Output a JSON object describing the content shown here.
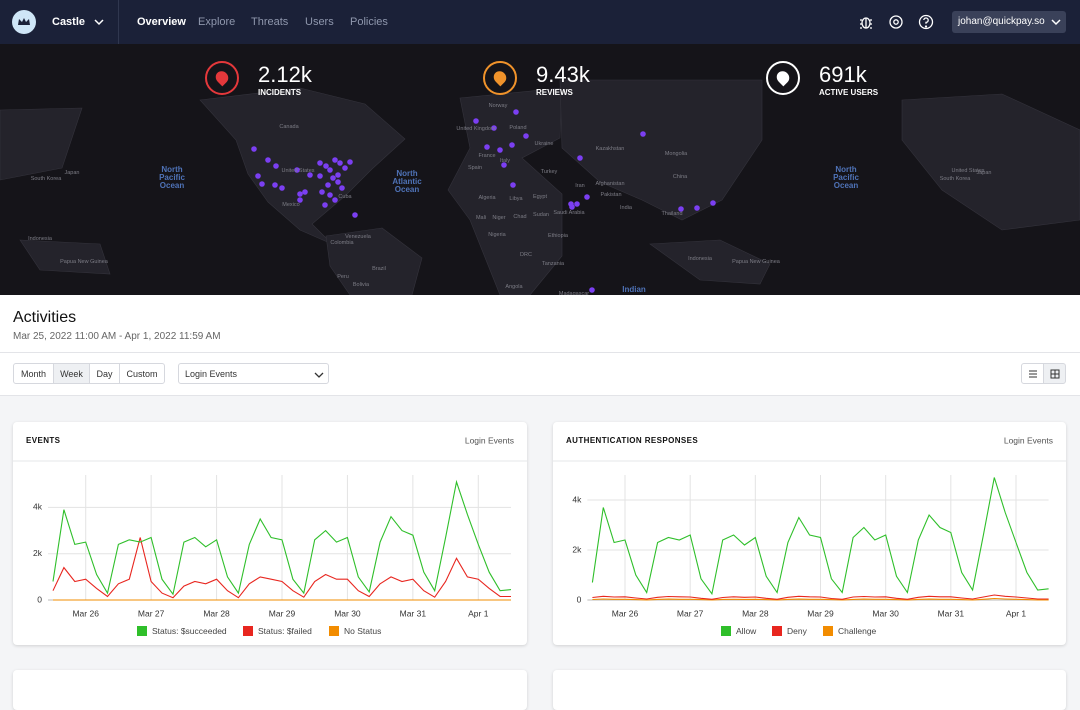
{
  "nav": {
    "brand": "Castle",
    "links": [
      "Overview",
      "Explore",
      "Threats",
      "Users",
      "Policies"
    ],
    "active": "Overview",
    "user": "johan@quickpay.so"
  },
  "stats": [
    {
      "value": "2.12k",
      "label": "INCIDENTS",
      "color": "#e5383b"
    },
    {
      "value": "9.43k",
      "label": "REVIEWS",
      "color": "#f0932b"
    },
    {
      "value": "691k",
      "label": "ACTIVE USERS",
      "color": "#ffffff"
    }
  ],
  "map_labels": [
    "North Pacific Ocean",
    "North Atlantic Ocean",
    "North Pacific Ocean",
    "Indian",
    "Canada",
    "United States",
    "Mexico",
    "Cuba",
    "Venezuela",
    "Colombia",
    "Peru",
    "Brazil",
    "Bolivia",
    "Algeria",
    "Libya",
    "Egypt",
    "Mali",
    "Niger",
    "Chad",
    "Sudan",
    "Nigeria",
    "Ethiopia",
    "DRC",
    "Tanzania",
    "Angola",
    "Kazakhstan",
    "Mongolia",
    "China",
    "Iran",
    "Turkey",
    "Ukraine",
    "Poland",
    "India",
    "Pakistan",
    "Afghanistan",
    "Thailand",
    "Japan",
    "South Korea",
    "Japan",
    "South Korea",
    "United States",
    "Papua New Guinea",
    "Papua New Guinea",
    "Indonesia",
    "Indonesia",
    "Saudi Arabia",
    "Norway",
    "United Kingdom",
    "Spain",
    "France",
    "Italy",
    "Madagascar"
  ],
  "activities": {
    "title": "Activities",
    "range": "Mar 25, 2022 11:00 AM - Apr 1, 2022 11:59 AM",
    "ranges": [
      "Month",
      "Week",
      "Day",
      "Custom"
    ],
    "active_range": "Week",
    "dropdown": "Login Events"
  },
  "chart_data": [
    {
      "type": "line",
      "title": "EVENTS",
      "subtitle": "Login Events",
      "categories": [
        null,
        null,
        null,
        "Mar 26",
        null,
        null,
        null,
        null,
        null,
        "Mar 27",
        null,
        null,
        null,
        null,
        null,
        "Mar 28",
        null,
        null,
        null,
        null,
        null,
        "Mar 29",
        null,
        null,
        null,
        null,
        null,
        "Mar 30",
        null,
        null,
        null,
        null,
        null,
        "Mar 31",
        null,
        null,
        null,
        null,
        null,
        "Apr 1",
        null,
        null,
        null
      ],
      "ylim": [
        0,
        5400
      ],
      "yticks": [
        0,
        {
          "value": 2000,
          "label": "2k"
        },
        {
          "value": 4000,
          "label": "4k"
        }
      ],
      "grid": true,
      "series": [
        {
          "name": "Status: $succeeded",
          "color": "#2fbf2a",
          "values": [
            800,
            3900,
            2400,
            2500,
            1100,
            300,
            2400,
            2600,
            2500,
            2700,
            900,
            250,
            2500,
            2700,
            2300,
            2600,
            1000,
            300,
            2400,
            3500,
            2700,
            2600,
            900,
            300,
            2600,
            3000,
            2500,
            2700,
            1000,
            350,
            2500,
            3600,
            3000,
            2800,
            1200,
            400,
            2700,
            5100,
            3700,
            2400,
            1200,
            400,
            450
          ]
        },
        {
          "name": "Status: $failed",
          "color": "#e8261f",
          "values": [
            400,
            1400,
            800,
            900,
            500,
            150,
            700,
            900,
            2700,
            800,
            300,
            100,
            600,
            800,
            700,
            900,
            400,
            100,
            700,
            1000,
            900,
            800,
            400,
            120,
            800,
            1100,
            900,
            900,
            400,
            150,
            700,
            1000,
            800,
            900,
            400,
            120,
            800,
            1800,
            1000,
            900,
            500,
            150,
            150
          ]
        },
        {
          "name": "No Status",
          "color": "#f28c00",
          "values": [
            0,
            0,
            0,
            0,
            0,
            0,
            0,
            0,
            0,
            0,
            0,
            0,
            0,
            0,
            0,
            0,
            0,
            0,
            0,
            0,
            0,
            0,
            0,
            0,
            0,
            0,
            0,
            0,
            0,
            0,
            0,
            0,
            0,
            0,
            0,
            0,
            0,
            0,
            0,
            0,
            0,
            0,
            0
          ]
        }
      ]
    },
    {
      "type": "line",
      "title": "AUTHENTICATION RESPONSES",
      "subtitle": "Login Events",
      "categories": [
        null,
        null,
        null,
        "Mar 26",
        null,
        null,
        null,
        null,
        null,
        "Mar 27",
        null,
        null,
        null,
        null,
        null,
        "Mar 28",
        null,
        null,
        null,
        null,
        null,
        "Mar 29",
        null,
        null,
        null,
        null,
        null,
        "Mar 30",
        null,
        null,
        null,
        null,
        null,
        "Mar 31",
        null,
        null,
        null,
        null,
        null,
        "Apr 1",
        null,
        null,
        null
      ],
      "ylim": [
        0,
        5000
      ],
      "yticks": [
        0,
        {
          "value": 2000,
          "label": "2k"
        },
        {
          "value": 4000,
          "label": "4k"
        }
      ],
      "grid": true,
      "series": [
        {
          "name": "Allow",
          "color": "#2fbf2a",
          "values": [
            700,
            3700,
            2300,
            2400,
            1000,
            300,
            2300,
            2500,
            2400,
            2600,
            850,
            250,
            2400,
            2600,
            2200,
            2500,
            950,
            300,
            2300,
            3300,
            2600,
            2500,
            850,
            300,
            2500,
            2900,
            2400,
            2600,
            950,
            300,
            2400,
            3400,
            2900,
            2700,
            1100,
            400,
            2600,
            4900,
            3500,
            2300,
            1100,
            400,
            450
          ]
        },
        {
          "name": "Deny",
          "color": "#e8261f",
          "values": [
            100,
            150,
            120,
            130,
            80,
            40,
            110,
            140,
            130,
            120,
            70,
            30,
            100,
            130,
            110,
            120,
            70,
            30,
            110,
            150,
            130,
            120,
            60,
            30,
            120,
            140,
            120,
            130,
            70,
            30,
            110,
            150,
            130,
            130,
            80,
            40,
            120,
            200,
            150,
            120,
            80,
            40,
            40
          ]
        },
        {
          "name": "Challenge",
          "color": "#f28c00",
          "values": [
            20,
            40,
            30,
            30,
            15,
            5,
            25,
            35,
            30,
            30,
            15,
            5,
            25,
            30,
            25,
            30,
            15,
            5,
            25,
            35,
            30,
            30,
            15,
            5,
            25,
            35,
            30,
            30,
            15,
            5,
            25,
            35,
            30,
            30,
            15,
            5,
            30,
            60,
            40,
            30,
            15,
            5,
            5
          ]
        }
      ]
    }
  ]
}
